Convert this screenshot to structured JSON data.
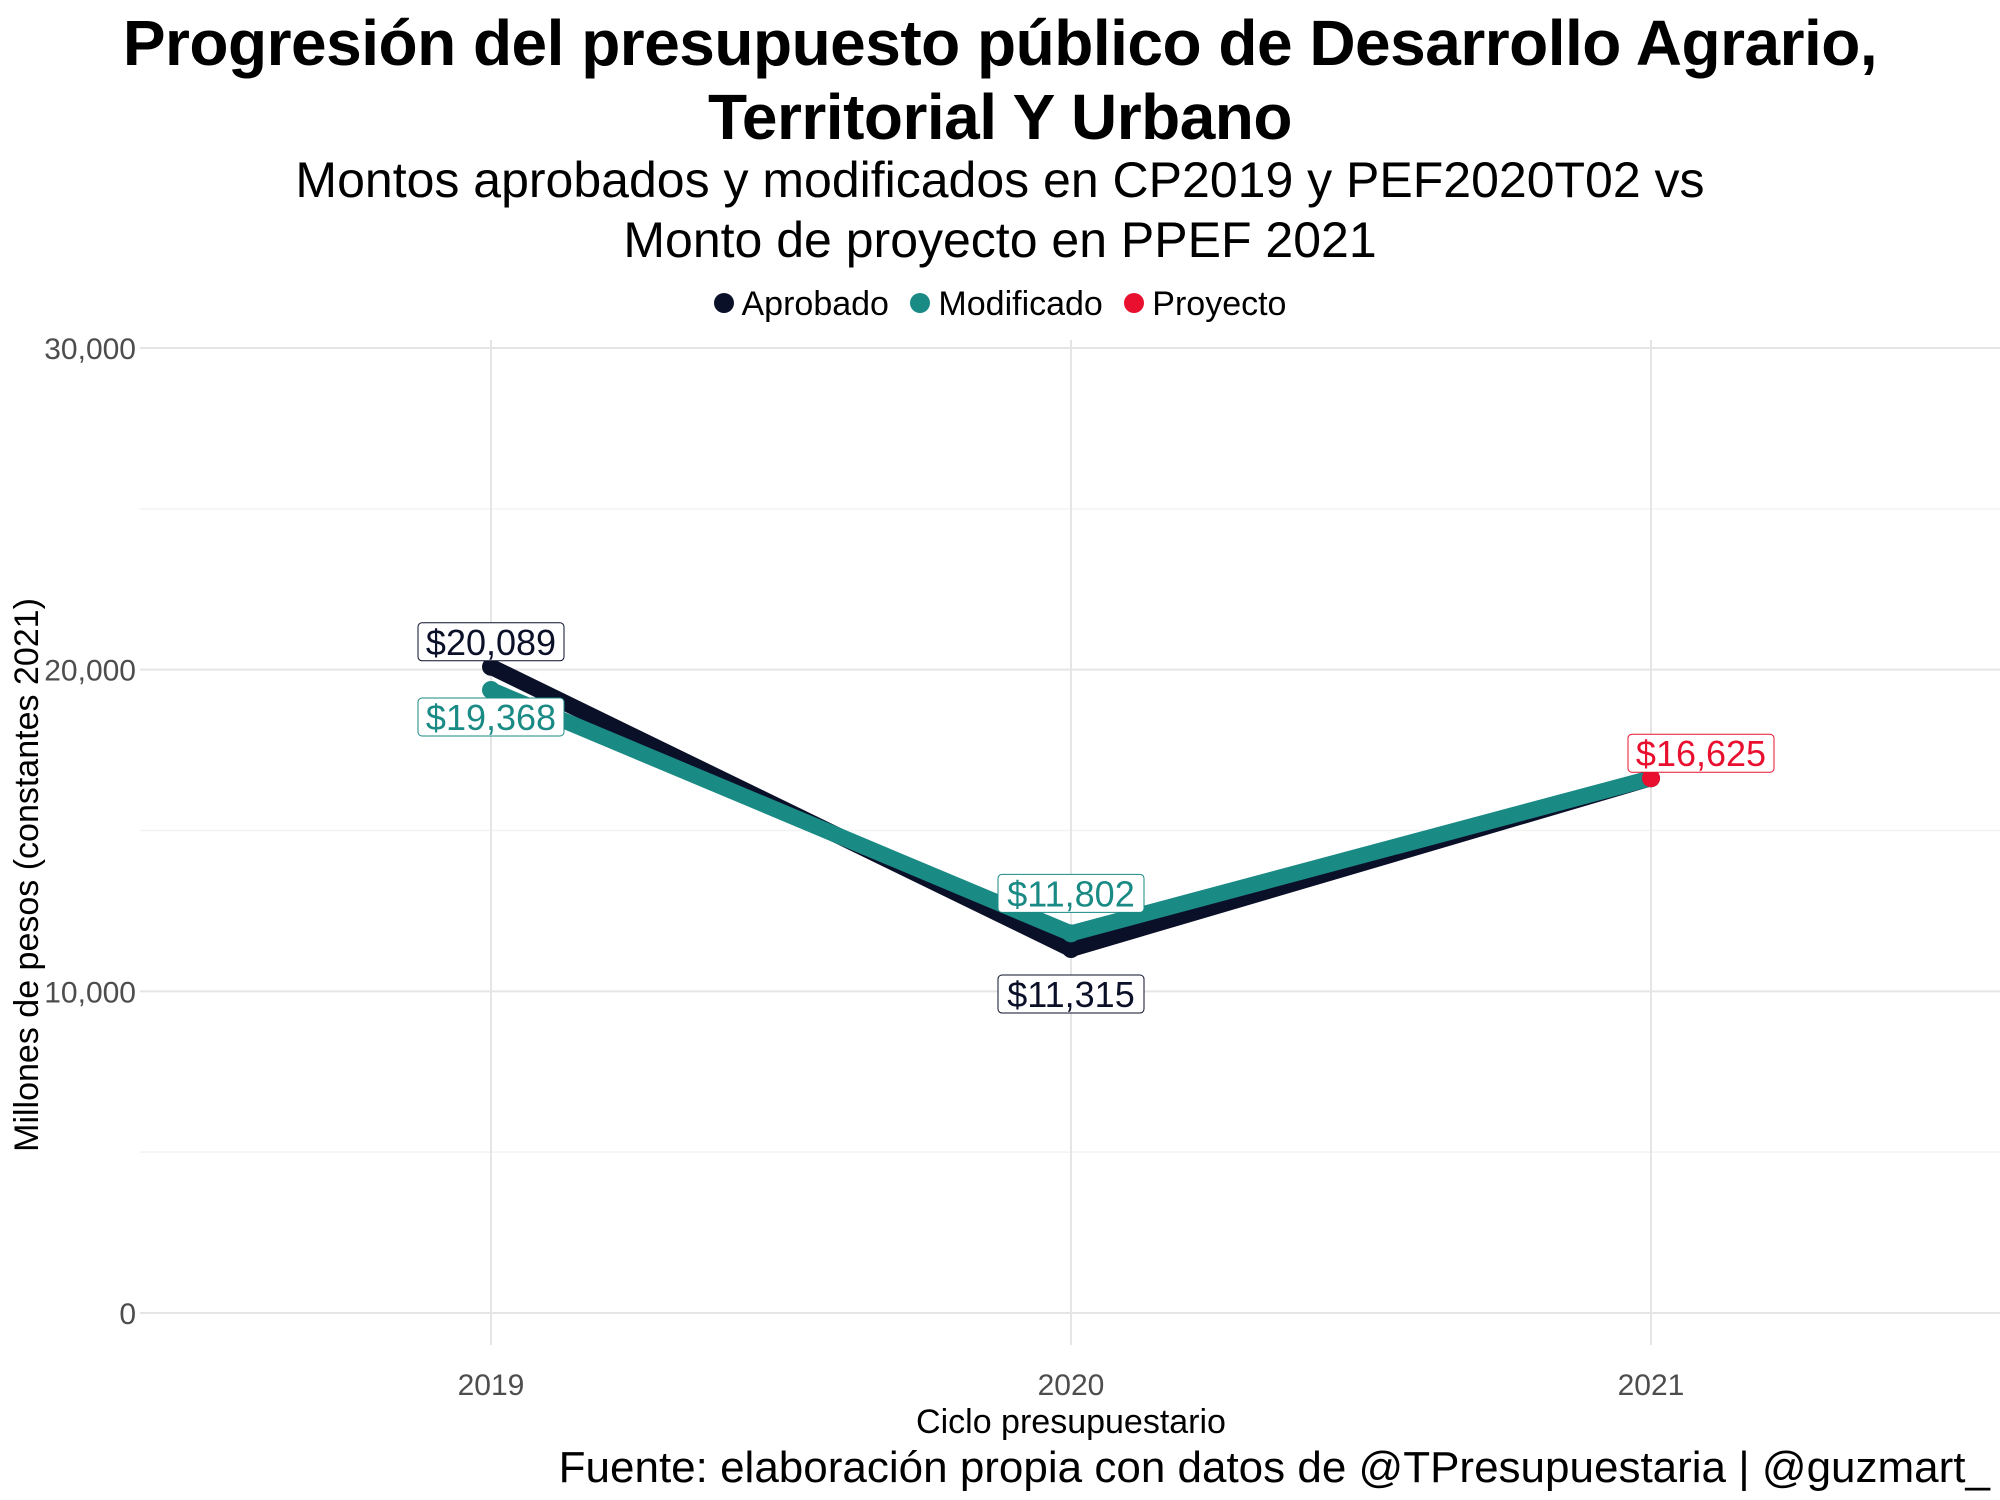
{
  "chart_data": {
    "type": "line",
    "title": "Progresión del presupuesto público de Desarrollo Agrario, Territorial Y Urbano",
    "title_lines": [
      "Progresión del presupuesto público de Desarrollo Agrario,",
      "Territorial Y Urbano"
    ],
    "subtitle": "Montos aprobados y modificados en CP2019 y PEF2020T02 vs Monto de proyecto en PPEF 2021",
    "subtitle_lines": [
      "Montos aprobados y modificados en CP2019 y PEF2020T02 vs",
      "Monto de proyecto en PPEF 2021"
    ],
    "xlabel": "Ciclo presupuestario",
    "ylabel": "Millones de pesos (constantes 2021)",
    "caption": "Fuente: elaboración propia con datos de @TPresupuestaria | @guzmart_",
    "categories": [
      "2019",
      "2020",
      "2021"
    ],
    "ylim": [
      0,
      30000
    ],
    "yticks": [
      0,
      10000,
      20000,
      30000
    ],
    "ytick_labels": [
      "0",
      "10,000",
      "20,000",
      "30,000"
    ],
    "grid": true,
    "legend_position": "top",
    "series": [
      {
        "name": "Aprobado",
        "color": "#0b1029",
        "values": [
          20089,
          11315,
          16625
        ],
        "labels": [
          "$20,089",
          "$11,315",
          null
        ]
      },
      {
        "name": "Modificado",
        "color": "#1a8a85",
        "values": [
          19368,
          11802,
          16625
        ],
        "labels": [
          "$19,368",
          "$11,802",
          null
        ]
      },
      {
        "name": "Proyecto",
        "color": "#e8102e",
        "values": [
          null,
          null,
          16625
        ],
        "labels": [
          null,
          null,
          "$16,625"
        ]
      }
    ]
  }
}
